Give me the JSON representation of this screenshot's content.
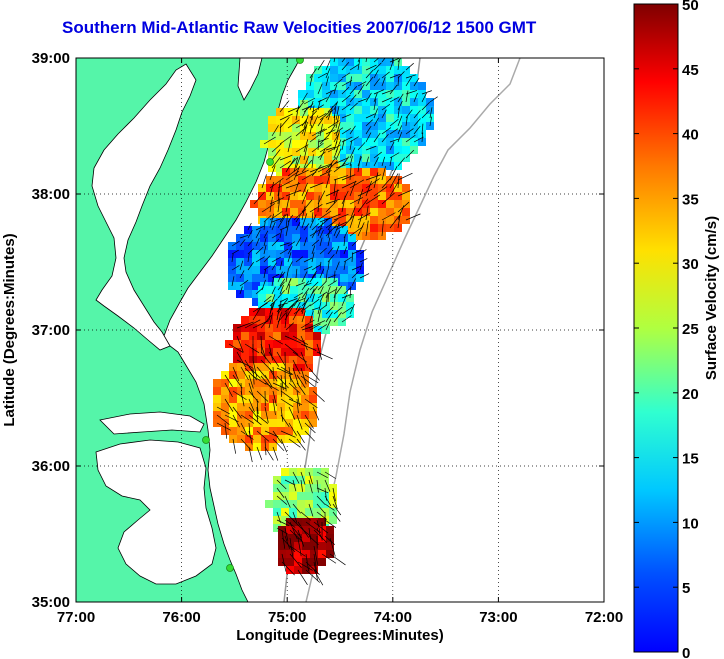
{
  "title": "Southern Mid-Atlantic Raw Velocities 2007/06/12 1500 GMT",
  "map": {
    "x_axis_label": "Longitude (Degrees:Minutes)",
    "y_axis_label": "Latitude (Degrees:Minutes)",
    "x_ticks": [
      "77:00",
      "76:00",
      "75:00",
      "74:00",
      "73:00",
      "72:00"
    ],
    "y_ticks": [
      "39:00",
      "38:00",
      "37:00",
      "36:00",
      "35:00"
    ],
    "lon_range": [
      -77,
      -72
    ],
    "lat_range": [
      35,
      39
    ],
    "grid": "dotted",
    "land_color": "#55f5a9",
    "water_color": "#ffffff",
    "station_color": "#33dd33"
  },
  "colorbar": {
    "label": "Surface Velocity (cm/s)",
    "ticks": [
      "0",
      "5",
      "10",
      "15",
      "20",
      "25",
      "30",
      "35",
      "40",
      "45",
      "50"
    ],
    "range": [
      0,
      50
    ],
    "colormap": "jet"
  }
}
